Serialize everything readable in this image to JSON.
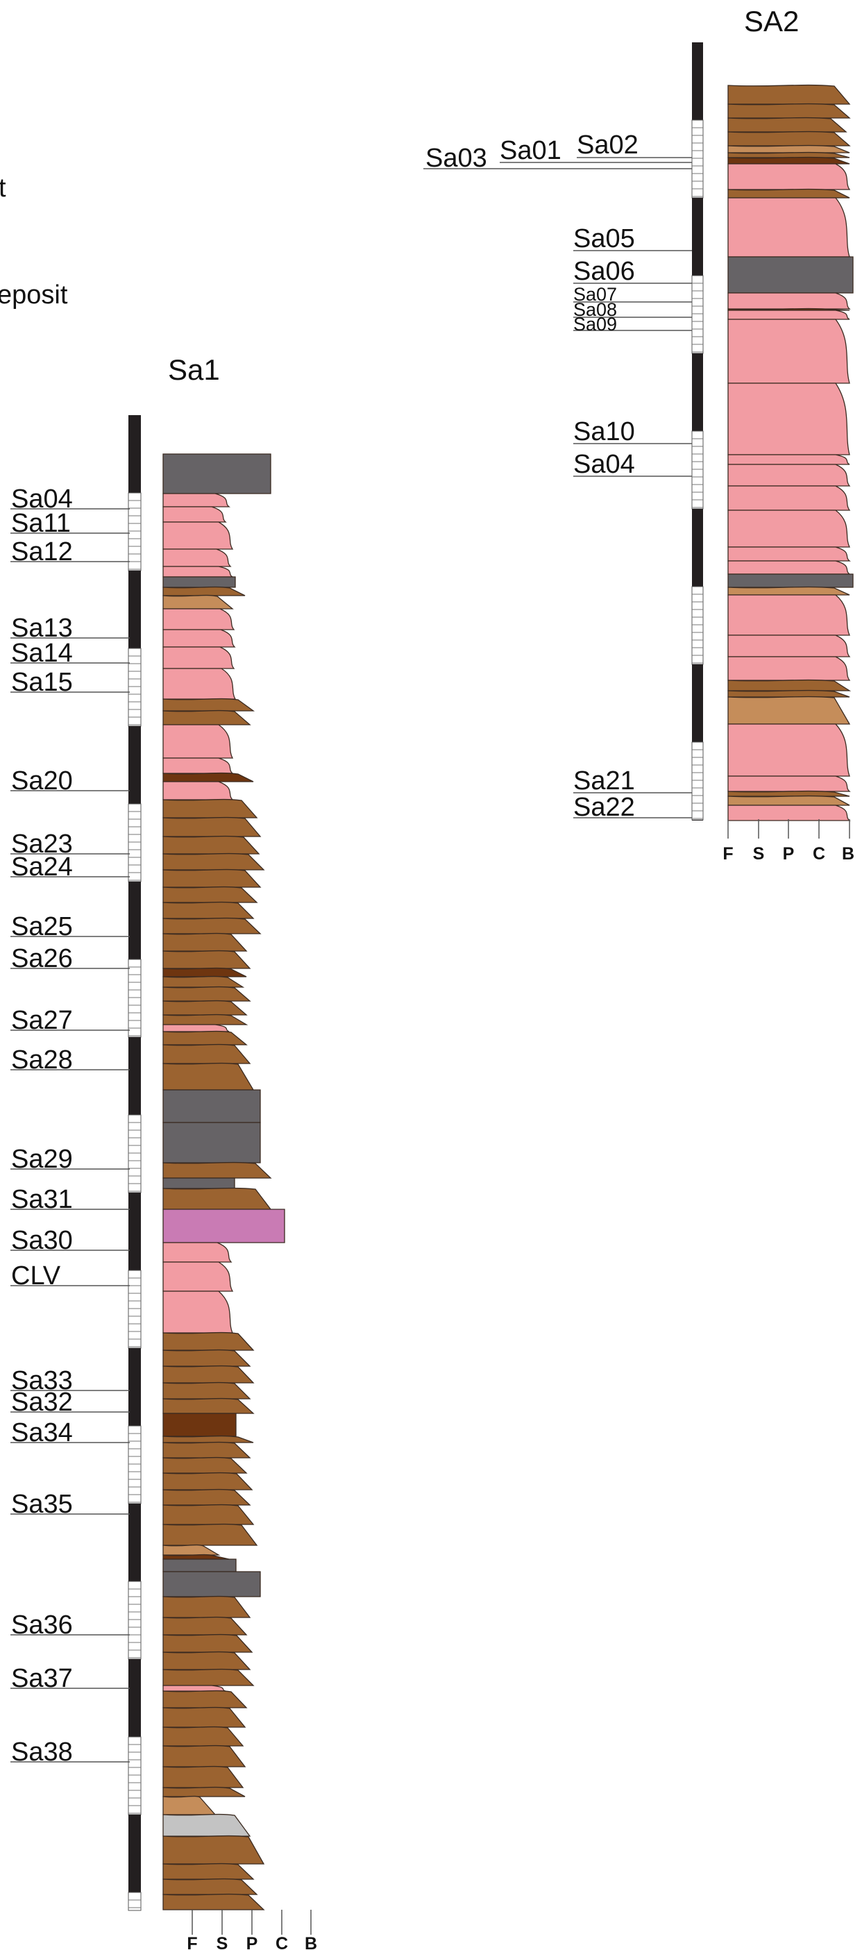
{
  "colors": {
    "pyroclastic_pink": "#f29ca3",
    "brown_bed": "#9b6330",
    "light_brown_bed": "#c58d5a",
    "dark_brown_bed": "#6e3510",
    "gray_bed": "#666366",
    "light_gray_bed": "#c3c3c3",
    "purple_bed": "#c97bb4",
    "scale_black": "#231f20"
  },
  "legend_fragments": [
    {
      "text": "t"
    },
    {
      "text": "eposit"
    }
  ],
  "columns": [
    {
      "id": "sa1",
      "title": "Sa1",
      "grain_axis": [
        "F",
        "S",
        "P",
        "C",
        "B"
      ],
      "samples": [
        "Sa04",
        "Sa11",
        "Sa12",
        "Sa13",
        "Sa14",
        "Sa15",
        "Sa20",
        "Sa23",
        "Sa24",
        "Sa25",
        "Sa26",
        "Sa27",
        "Sa28",
        "Sa29",
        "Sa31",
        "Sa30",
        "CLV",
        "Sa33",
        "Sa32",
        "Sa34",
        "Sa35",
        "Sa36",
        "Sa37",
        "Sa38"
      ]
    },
    {
      "id": "sa2",
      "title": "SA2",
      "grain_axis": [
        "F",
        "S",
        "P",
        "C",
        "B"
      ],
      "samples": [
        "Sa03",
        "Sa01",
        "Sa02",
        "Sa05",
        "Sa06",
        "Sa07",
        "Sa08",
        "Sa09",
        "Sa10",
        "Sa04",
        "Sa21",
        "Sa22"
      ]
    }
  ]
}
